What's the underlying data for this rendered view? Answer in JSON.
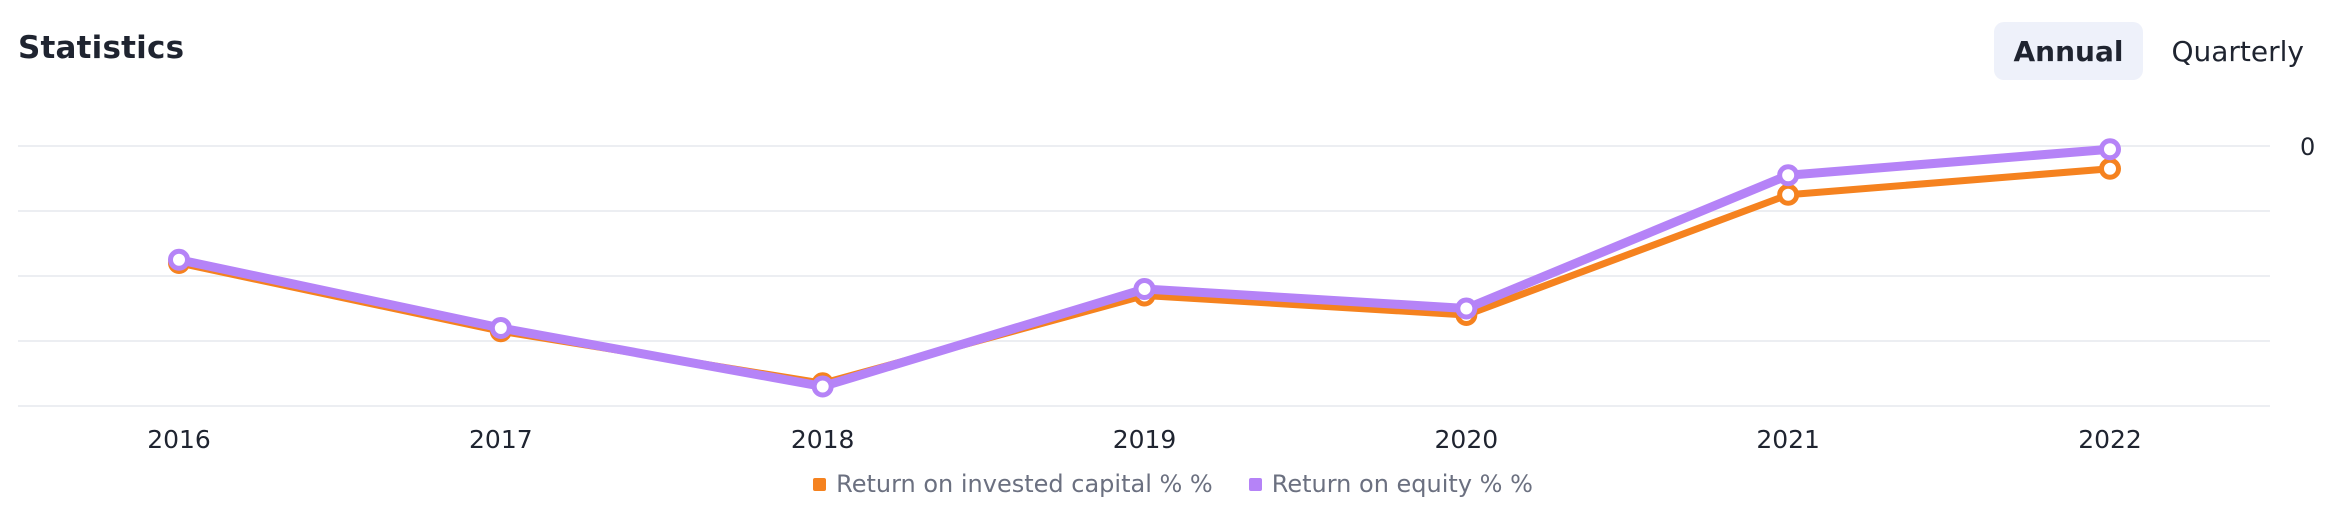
{
  "header": {
    "title": "Statistics",
    "toggle": [
      {
        "label": "Annual",
        "active": true
      },
      {
        "label": "Quarterly",
        "active": false
      }
    ]
  },
  "chart_data": {
    "type": "line",
    "x": [
      "2016",
      "2017",
      "2018",
      "2019",
      "2020",
      "2021",
      "2022"
    ],
    "y_tick_labels": [
      "0"
    ],
    "grid": true,
    "legend_position": "bottom-center",
    "series": [
      {
        "name": "Return on invested capital % %",
        "color": "#f5821f",
        "values": [
          -0.36,
          -0.57,
          -0.73,
          -0.46,
          -0.52,
          -0.15,
          -0.07
        ]
      },
      {
        "name": "Return on equity % %",
        "color": "#b583f7",
        "values": [
          -0.35,
          -0.56,
          -0.74,
          -0.44,
          -0.5,
          -0.09,
          -0.01
        ]
      }
    ],
    "ylim": [
      -0.8,
      0
    ]
  }
}
